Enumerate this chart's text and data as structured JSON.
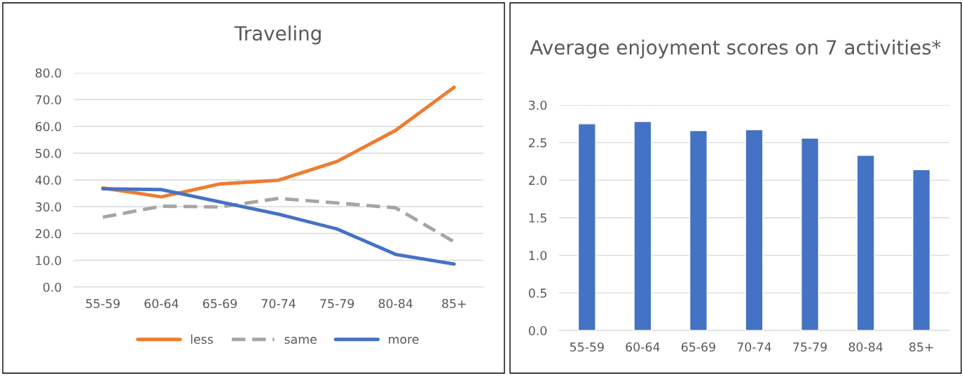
{
  "chart_data": [
    {
      "type": "line",
      "title": "Traveling",
      "categories": [
        "55-59",
        "60-64",
        "65-69",
        "70-74",
        "75-79",
        "80-84",
        "85+"
      ],
      "series": [
        {
          "name": "less",
          "color": "#ed7d31",
          "line_style": "solid",
          "values": [
            37.0,
            33.7,
            38.5,
            39.9,
            46.9,
            58.5,
            74.6
          ]
        },
        {
          "name": "same",
          "color": "#a5a5a5",
          "line_style": "dashed",
          "values": [
            26.1,
            30.2,
            29.9,
            33.1,
            31.4,
            29.6,
            16.9
          ]
        },
        {
          "name": "more",
          "color": "#4472c4",
          "line_style": "solid",
          "values": [
            36.7,
            36.4,
            31.8,
            27.2,
            21.7,
            12.2,
            8.6
          ]
        }
      ],
      "ylim": [
        0,
        80
      ],
      "yticks": [
        {
          "value": 0,
          "label": "0.0"
        },
        {
          "value": 10,
          "label": "10.0"
        },
        {
          "value": 20,
          "label": "20.0"
        },
        {
          "value": 30,
          "label": "30.0"
        },
        {
          "value": 40,
          "label": "40.0"
        },
        {
          "value": 50,
          "label": "50.0"
        },
        {
          "value": 60,
          "label": "60.0"
        },
        {
          "value": 70,
          "label": "70.0"
        },
        {
          "value": 80,
          "label": "80.0"
        }
      ],
      "grid": "y",
      "legend": "bottom",
      "marker": "none"
    },
    {
      "type": "bar",
      "title": "Average enjoyment scores on 7 activities*",
      "categories": [
        "55-59",
        "60-64",
        "65-69",
        "70-74",
        "75-79",
        "80-84",
        "85+"
      ],
      "values": [
        2.75,
        2.78,
        2.66,
        2.67,
        2.56,
        2.33,
        2.14
      ],
      "color": "#4472c4",
      "ylim": [
        0,
        3
      ],
      "yticks": [
        {
          "value": 0,
          "label": "0.0"
        },
        {
          "value": 0.5,
          "label": "0.5"
        },
        {
          "value": 1,
          "label": "1.0"
        },
        {
          "value": 1.5,
          "label": "1.5"
        },
        {
          "value": 2,
          "label": "2.0"
        },
        {
          "value": 2.5,
          "label": "2.5"
        },
        {
          "value": 3,
          "label": "3.0"
        }
      ],
      "grid": "y",
      "legend": false
    }
  ]
}
